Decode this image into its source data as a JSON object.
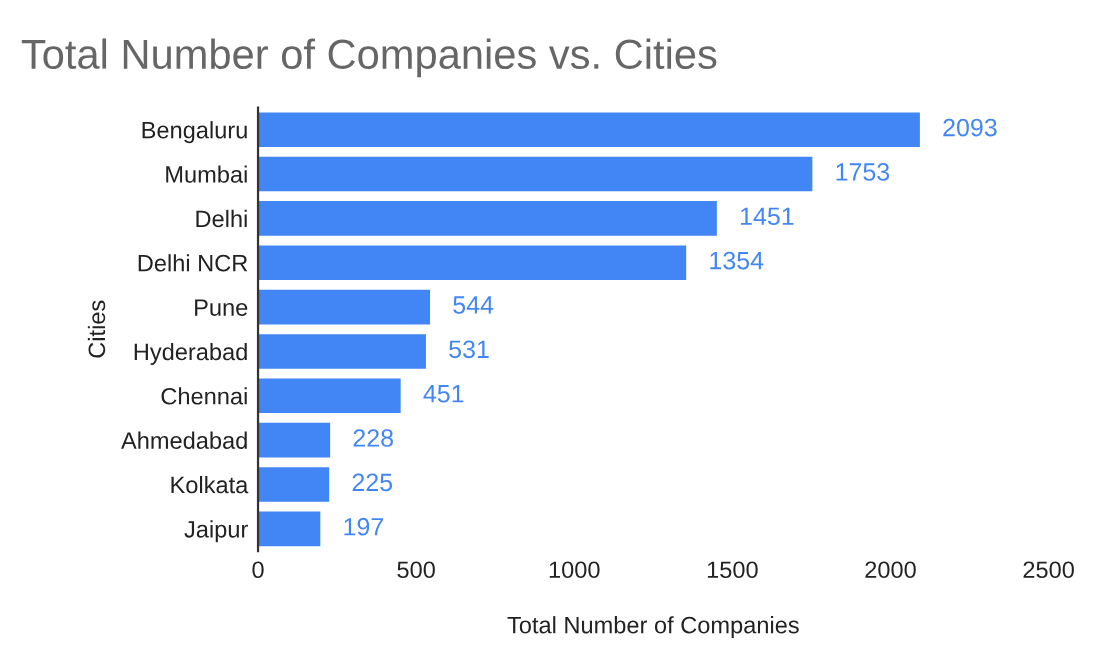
{
  "chart_data": {
    "type": "bar",
    "orientation": "horizontal",
    "title": "Total Number of Companies vs. Cities",
    "xlabel": "Total Number of Companies",
    "ylabel": "Cities",
    "categories": [
      "Bengaluru",
      "Mumbai",
      "Delhi",
      "Delhi NCR",
      "Pune",
      "Hyderabad",
      "Chennai",
      "Ahmedabad",
      "Kolkata",
      "Jaipur"
    ],
    "values": [
      2093,
      1753,
      1451,
      1354,
      544,
      531,
      451,
      228,
      225,
      197
    ],
    "color": "#4285f4",
    "data_labels": true,
    "xlim": [
      0,
      2500
    ],
    "xticks": [
      0,
      500,
      1000,
      1500,
      2000,
      2500
    ],
    "grid": false,
    "legend": false
  }
}
